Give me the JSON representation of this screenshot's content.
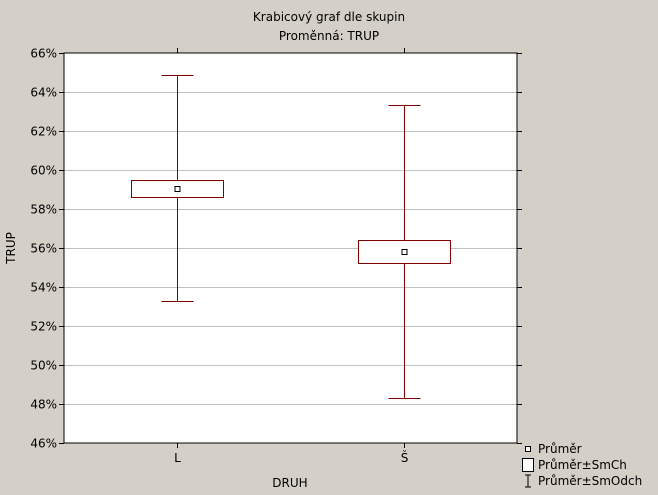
{
  "chart_data": {
    "type": "box",
    "title": "Krabicový graf dle skupin",
    "subtitle": "Proměnná: TRUP",
    "xlabel": "DRUH",
    "ylabel": "TRUP",
    "ylim": [
      46,
      66
    ],
    "yticks": [
      46,
      48,
      50,
      52,
      54,
      56,
      58,
      60,
      62,
      64,
      66
    ],
    "ytick_suffix": "%",
    "grid": true,
    "legend_position": "bottom-right",
    "colors": {
      "box": "#800000",
      "background": "#d4d0c8",
      "plot": "#ffffff",
      "grid": "#c0c0c0"
    },
    "categories": [
      "L",
      "Š"
    ],
    "groups": [
      {
        "category": "L",
        "mean": 59.05,
        "se_low": 58.6,
        "se_high": 59.5,
        "sd_low": 53.3,
        "sd_high": 64.85
      },
      {
        "category": "Š",
        "mean": 55.8,
        "se_low": 55.25,
        "se_high": 56.4,
        "sd_low": 48.3,
        "sd_high": 63.35
      }
    ],
    "legend": [
      {
        "symbol": "point",
        "label": "Průměr"
      },
      {
        "symbol": "box",
        "label": "Průměr±SmCh"
      },
      {
        "symbol": "whisker",
        "label": "Průměr±SmOdch"
      }
    ]
  }
}
